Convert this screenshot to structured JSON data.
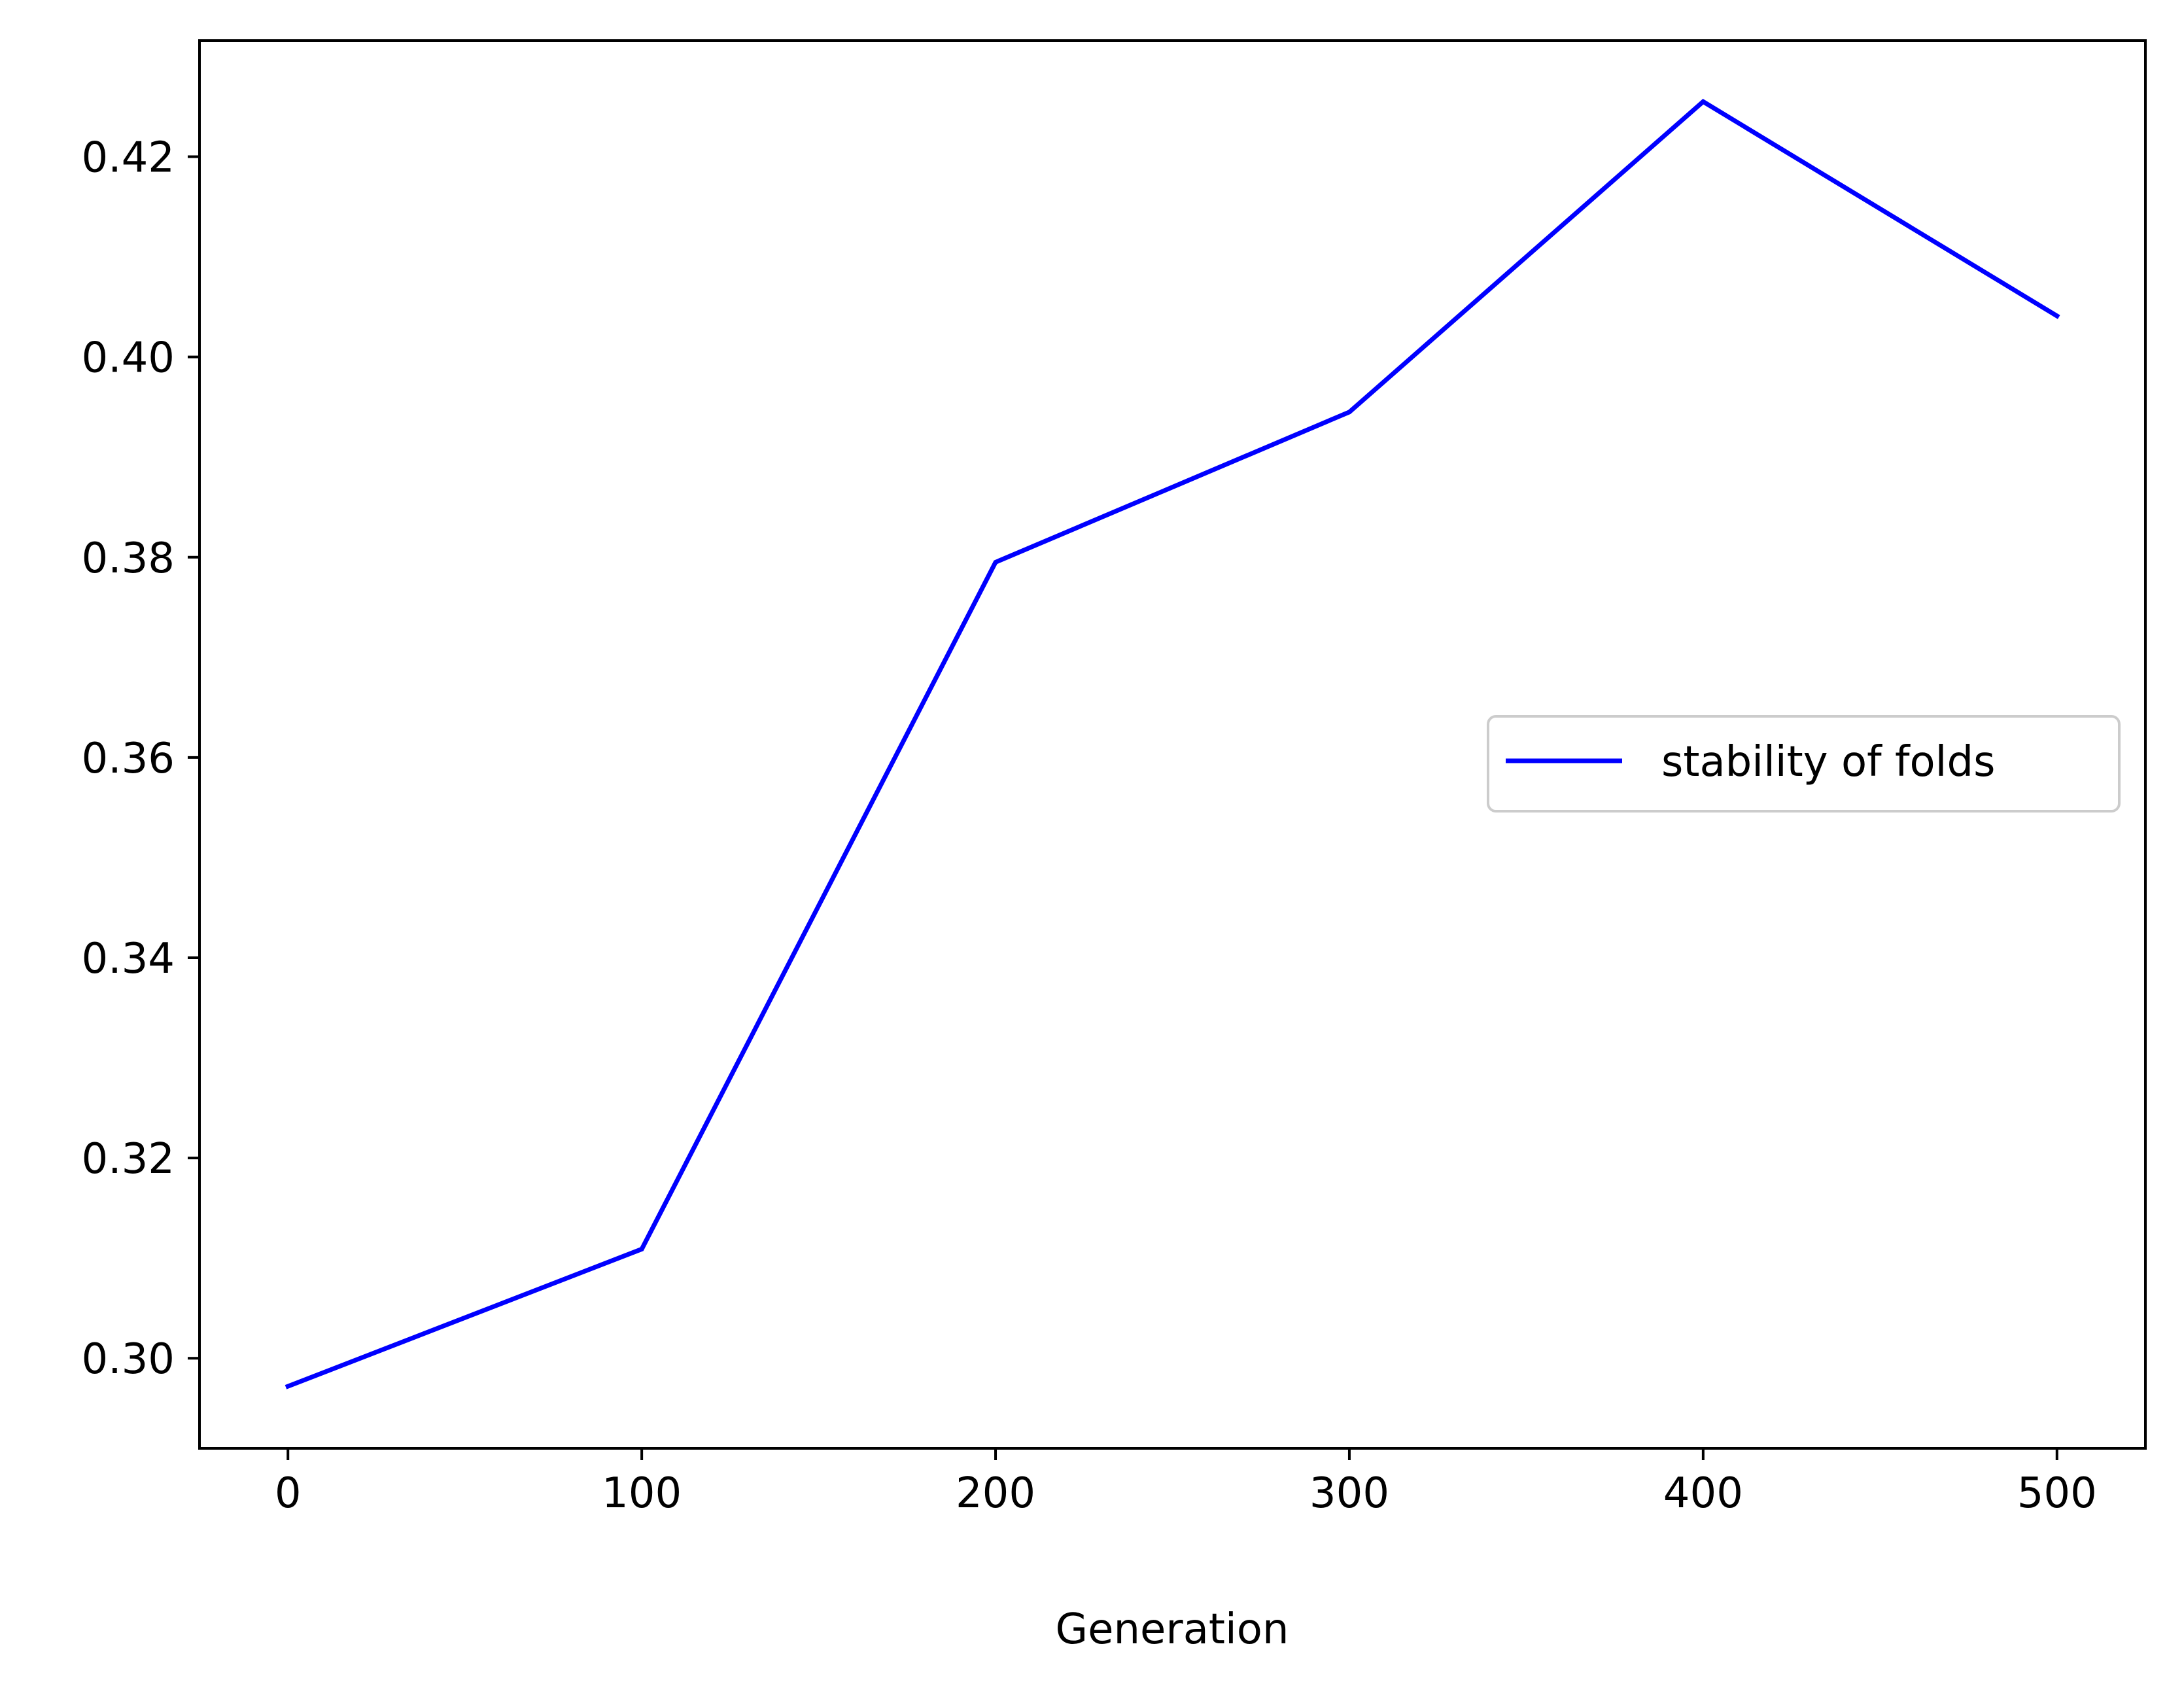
{
  "chart_data": {
    "type": "line",
    "title": "",
    "xlabel": "Generation",
    "ylabel": "",
    "xlim": [
      -25,
      525
    ],
    "ylim": [
      0.291,
      0.4316
    ],
    "x_ticks": [
      0,
      100,
      200,
      300,
      400,
      500
    ],
    "x_tick_labels": [
      "0",
      "100",
      "200",
      "300",
      "400",
      "500"
    ],
    "y_ticks": [
      0.3,
      0.32,
      0.34,
      0.36,
      0.38,
      0.4,
      0.42
    ],
    "y_tick_labels": [
      "0.30",
      "0.32",
      "0.34",
      "0.36",
      "0.38",
      "0.40",
      "0.42"
    ],
    "grid": false,
    "legend_position": "center-right",
    "series": [
      {
        "name": "stability of folds",
        "color": "#0000ff",
        "x": [
          0,
          100,
          200,
          300,
          400,
          500
        ],
        "y": [
          0.2972,
          0.3109,
          0.3795,
          0.3945,
          0.4255,
          0.4041
        ]
      }
    ]
  }
}
